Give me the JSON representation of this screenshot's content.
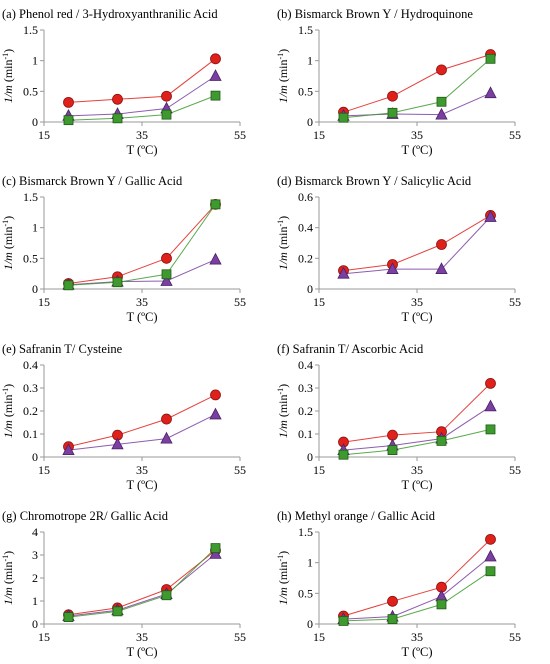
{
  "colors": {
    "red": "#e0201b",
    "purple": "#7a3fa0",
    "green": "#3e9a2e",
    "axis": "#999999"
  },
  "y_axis_label": {
    "main": "1/m",
    "unit_open": " (min",
    "unit_sup": "-1",
    "unit_close": ")"
  },
  "chart_data": [
    {
      "type": "line",
      "title": "(a) Phenol red / 3-Hydroxyanthranilic Acid",
      "xlabel": "T (ºC)",
      "ylabel": "1/m (min-1)",
      "x_ticks": [
        "15",
        "35",
        "55"
      ],
      "y_ticks": [
        "0",
        "0.5",
        "1",
        "1.5"
      ],
      "xlim": [
        15,
        55
      ],
      "ylim": [
        0,
        1.5
      ],
      "x": [
        20,
        30,
        40,
        50
      ],
      "series": [
        {
          "marker": "circle",
          "color": "red",
          "values": [
            0.32,
            0.37,
            0.42,
            1.03
          ]
        },
        {
          "marker": "triangle",
          "color": "purple",
          "values": [
            0.1,
            0.13,
            0.22,
            0.75
          ]
        },
        {
          "marker": "square",
          "color": "green",
          "values": [
            0.03,
            0.06,
            0.12,
            0.43
          ]
        }
      ]
    },
    {
      "type": "line",
      "title": "(b) Bismarck Brown Y / Hydroquinone",
      "xlabel": "T (ºC)",
      "ylabel": "1/m (min-1)",
      "x_ticks": [
        "15",
        "35",
        "55"
      ],
      "y_ticks": [
        "0",
        "0.5",
        "1",
        "1.5"
      ],
      "xlim": [
        15,
        55
      ],
      "ylim": [
        0,
        1.5
      ],
      "x": [
        20,
        30,
        40,
        50
      ],
      "series": [
        {
          "marker": "circle",
          "color": "red",
          "values": [
            0.16,
            0.42,
            0.85,
            1.1
          ]
        },
        {
          "marker": "triangle",
          "color": "purple",
          "values": [
            0.1,
            0.13,
            0.12,
            0.47
          ]
        },
        {
          "marker": "square",
          "color": "green",
          "values": [
            0.07,
            0.15,
            0.33,
            1.03
          ]
        }
      ]
    },
    {
      "type": "line",
      "title": "(c) Bismarck Brown Y / Gallic Acid",
      "xlabel": "T (ºC)",
      "ylabel": "1/m (min-1)",
      "x_ticks": [
        "15",
        "35",
        "55"
      ],
      "y_ticks": [
        "0",
        "0.5",
        "1",
        "1.5"
      ],
      "xlim": [
        15,
        55
      ],
      "ylim": [
        0,
        1.5
      ],
      "x": [
        20,
        30,
        40,
        50
      ],
      "series": [
        {
          "marker": "circle",
          "color": "red",
          "values": [
            0.09,
            0.2,
            0.5,
            1.38
          ]
        },
        {
          "marker": "triangle",
          "color": "purple",
          "values": [
            0.07,
            0.12,
            0.13,
            0.48
          ]
        },
        {
          "marker": "square",
          "color": "green",
          "values": [
            0.06,
            0.11,
            0.24,
            1.38
          ]
        }
      ]
    },
    {
      "type": "line",
      "title": "(d) Bismarck Brown Y / Salicylic Acid",
      "xlabel": "T (ºC)",
      "ylabel": "1/m (min-1)",
      "x_ticks": [
        "15",
        "35",
        "55"
      ],
      "y_ticks": [
        "0",
        "0.2",
        "0.4",
        "0.6"
      ],
      "xlim": [
        15,
        55
      ],
      "ylim": [
        0,
        0.6
      ],
      "x": [
        20,
        30,
        40,
        50
      ],
      "series": [
        {
          "marker": "circle",
          "color": "red",
          "values": [
            0.12,
            0.16,
            0.29,
            0.48
          ]
        },
        {
          "marker": "triangle",
          "color": "purple",
          "values": [
            0.1,
            0.13,
            0.13,
            0.47
          ]
        }
      ]
    },
    {
      "type": "line",
      "title": "(e) Safranin T/ Cysteine",
      "xlabel": "T (ºC)",
      "ylabel": "1/m (min-1)",
      "x_ticks": [
        "15",
        "35",
        "55"
      ],
      "y_ticks": [
        "0",
        "0.1",
        "0.2",
        "0.3",
        "0.4"
      ],
      "xlim": [
        15,
        55
      ],
      "ylim": [
        0,
        0.4
      ],
      "x": [
        20,
        30,
        40,
        50
      ],
      "series": [
        {
          "marker": "circle",
          "color": "red",
          "values": [
            0.045,
            0.095,
            0.165,
            0.27
          ]
        },
        {
          "marker": "triangle",
          "color": "purple",
          "values": [
            0.03,
            0.055,
            0.08,
            0.185
          ]
        }
      ]
    },
    {
      "type": "line",
      "title": "(f) Safranin T/ Ascorbic Acid",
      "xlabel": "T (ºC)",
      "ylabel": "1/m (min-1)",
      "x_ticks": [
        "15",
        "35",
        "55"
      ],
      "y_ticks": [
        "0",
        "0.1",
        "0.2",
        "0.3",
        "0.4"
      ],
      "xlim": [
        15,
        55
      ],
      "ylim": [
        0,
        0.4
      ],
      "x": [
        20,
        30,
        40,
        50
      ],
      "series": [
        {
          "marker": "circle",
          "color": "red",
          "values": [
            0.065,
            0.095,
            0.11,
            0.32
          ]
        },
        {
          "marker": "triangle",
          "color": "purple",
          "values": [
            0.03,
            0.05,
            0.08,
            0.22
          ]
        },
        {
          "marker": "square",
          "color": "green",
          "values": [
            0.01,
            0.03,
            0.07,
            0.12
          ]
        }
      ]
    },
    {
      "type": "line",
      "title": "(g) Chromotrope 2R/ Gallic Acid",
      "xlabel": "T (ºC)",
      "ylabel": "1/m (min-1)",
      "x_ticks": [
        "15",
        "35",
        "55"
      ],
      "y_ticks": [
        "0",
        "1",
        "2",
        "3",
        "4"
      ],
      "xlim": [
        15,
        55
      ],
      "ylim": [
        0,
        4
      ],
      "x": [
        20,
        30,
        40,
        50
      ],
      "series": [
        {
          "marker": "circle",
          "color": "red",
          "values": [
            0.4,
            0.7,
            1.5,
            3.2
          ]
        },
        {
          "marker": "triangle",
          "color": "purple",
          "values": [
            0.35,
            0.6,
            1.3,
            3.05
          ]
        },
        {
          "marker": "square",
          "color": "green",
          "values": [
            0.3,
            0.55,
            1.25,
            3.3
          ]
        }
      ]
    },
    {
      "type": "line",
      "title": "(h) Methyl orange / Gallic Acid",
      "xlabel": "T (ºC)",
      "ylabel": "1/m (min-1)",
      "x_ticks": [
        "15",
        "35",
        "55"
      ],
      "y_ticks": [
        "0",
        "0.5",
        "1",
        "1.5"
      ],
      "xlim": [
        15,
        55
      ],
      "ylim": [
        0,
        1.5
      ],
      "x": [
        20,
        30,
        40,
        50
      ],
      "series": [
        {
          "marker": "circle",
          "color": "red",
          "values": [
            0.13,
            0.37,
            0.6,
            1.38
          ]
        },
        {
          "marker": "triangle",
          "color": "purple",
          "values": [
            0.08,
            0.12,
            0.45,
            1.1
          ]
        },
        {
          "marker": "square",
          "color": "green",
          "values": [
            0.05,
            0.08,
            0.32,
            0.86
          ]
        }
      ]
    }
  ]
}
